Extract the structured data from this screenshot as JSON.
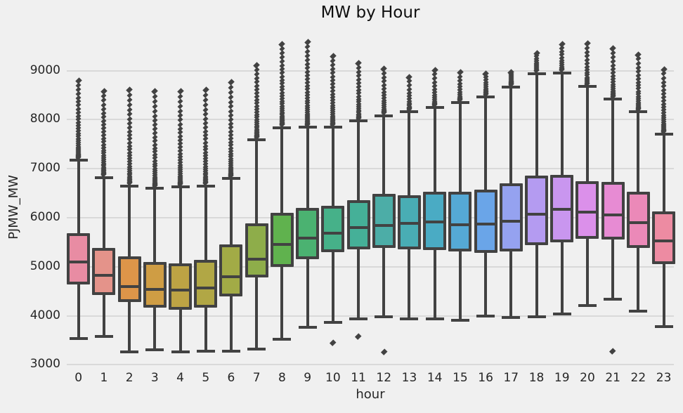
{
  "chart_data": {
    "type": "box",
    "title": "MW by Hour",
    "xlabel": "hour",
    "ylabel": "PJMW_MW",
    "x_categories": [
      "0",
      "1",
      "2",
      "3",
      "4",
      "5",
      "6",
      "7",
      "8",
      "9",
      "10",
      "11",
      "12",
      "13",
      "14",
      "15",
      "16",
      "17",
      "18",
      "19",
      "20",
      "21",
      "22",
      "23"
    ],
    "yticks": [
      3000,
      4000,
      5000,
      6000,
      7000,
      8000,
      9000
    ],
    "ylim": [
      2950,
      9700
    ],
    "grid": true,
    "legend": false,
    "style": {
      "background": "#f0f0f0",
      "gridline": "#d9d9d9",
      "box_line": "#424242",
      "tick_text": "#262626",
      "title_text": "#0e0e0e"
    },
    "series": [
      {
        "hour": "0",
        "fill": "#e88ca3",
        "whisker_low": 3530,
        "q1": 4640,
        "median": 5090,
        "q3": 5680,
        "whisker_high": 7175,
        "outlier_max": 8790,
        "outliers_low": []
      },
      {
        "hour": "1",
        "fill": "#e4938a",
        "whisker_low": 3580,
        "q1": 4420,
        "median": 4820,
        "q3": 5380,
        "whisker_high": 6820,
        "outlier_max": 8580,
        "outliers_low": []
      },
      {
        "hour": "2",
        "fill": "#dd9549",
        "whisker_low": 3265,
        "q1": 4280,
        "median": 4590,
        "q3": 5210,
        "whisker_high": 6650,
        "outlier_max": 8610,
        "outliers_low": []
      },
      {
        "hour": "3",
        "fill": "#cf9d44",
        "whisker_low": 3300,
        "q1": 4160,
        "median": 4540,
        "q3": 5090,
        "whisker_high": 6600,
        "outlier_max": 8580,
        "outliers_low": []
      },
      {
        "hour": "4",
        "fill": "#bda344",
        "whisker_low": 3260,
        "q1": 4120,
        "median": 4520,
        "q3": 5070,
        "whisker_high": 6630,
        "outlier_max": 8580,
        "outliers_low": []
      },
      {
        "hour": "5",
        "fill": "#b1a745",
        "whisker_low": 3270,
        "q1": 4160,
        "median": 4560,
        "q3": 5140,
        "whisker_high": 6650,
        "outlier_max": 8610,
        "outliers_low": []
      },
      {
        "hour": "6",
        "fill": "#a2ab46",
        "whisker_low": 3280,
        "q1": 4400,
        "median": 4800,
        "q3": 5450,
        "whisker_high": 6800,
        "outlier_max": 8770,
        "outliers_low": []
      },
      {
        "hour": "7",
        "fill": "#8ead4a",
        "whisker_low": 3315,
        "q1": 4780,
        "median": 5150,
        "q3": 5880,
        "whisker_high": 7590,
        "outlier_max": 9110,
        "outliers_low": []
      },
      {
        "hour": "8",
        "fill": "#60b24e",
        "whisker_low": 3520,
        "q1": 5000,
        "median": 5455,
        "q3": 6100,
        "whisker_high": 7840,
        "outlier_max": 9540,
        "outliers_low": []
      },
      {
        "hour": "9",
        "fill": "#4bb271",
        "whisker_low": 3760,
        "q1": 5160,
        "median": 5590,
        "q3": 6200,
        "whisker_high": 7845,
        "outlier_max": 9575,
        "outliers_low": []
      },
      {
        "hour": "10",
        "fill": "#46b189",
        "whisker_low": 3870,
        "q1": 5290,
        "median": 5690,
        "q3": 6250,
        "whisker_high": 7850,
        "outlier_max": 9300,
        "outliers_low": [
          3450
        ]
      },
      {
        "hour": "11",
        "fill": "#45b098",
        "whisker_low": 3930,
        "q1": 5355,
        "median": 5800,
        "q3": 6360,
        "whisker_high": 7970,
        "outlier_max": 9155,
        "outliers_low": [
          3580
        ]
      },
      {
        "hour": "12",
        "fill": "#4cada7",
        "whisker_low": 3985,
        "q1": 5385,
        "median": 5840,
        "q3": 6480,
        "whisker_high": 8080,
        "outlier_max": 9040,
        "outliers_low": [
          3260
        ]
      },
      {
        "hour": "13",
        "fill": "#49adb4",
        "whisker_low": 3935,
        "q1": 5360,
        "median": 5890,
        "q3": 6460,
        "whisker_high": 8165,
        "outlier_max": 8870,
        "outliers_low": []
      },
      {
        "hour": "14",
        "fill": "#4aabc4",
        "whisker_low": 3935,
        "q1": 5345,
        "median": 5920,
        "q3": 6530,
        "whisker_high": 8250,
        "outlier_max": 9015,
        "outliers_low": []
      },
      {
        "hour": "15",
        "fill": "#55a9d5",
        "whisker_low": 3910,
        "q1": 5310,
        "median": 5855,
        "q3": 6535,
        "whisker_high": 8350,
        "outlier_max": 8960,
        "outliers_low": []
      },
      {
        "hour": "16",
        "fill": "#6aa5e8",
        "whisker_low": 3995,
        "q1": 5280,
        "median": 5870,
        "q3": 6575,
        "whisker_high": 8465,
        "outlier_max": 8930,
        "outliers_low": []
      },
      {
        "hour": "17",
        "fill": "#95a2f0",
        "whisker_low": 3965,
        "q1": 5310,
        "median": 5930,
        "q3": 6695,
        "whisker_high": 8665,
        "outlier_max": 8970,
        "outliers_low": []
      },
      {
        "hour": "18",
        "fill": "#b49bf1",
        "whisker_low": 3980,
        "q1": 5440,
        "median": 6070,
        "q3": 6860,
        "whisker_high": 8940,
        "outlier_max": 9355,
        "outliers_low": []
      },
      {
        "hour": "19",
        "fill": "#c996ef",
        "whisker_low": 4035,
        "q1": 5500,
        "median": 6170,
        "q3": 6875,
        "whisker_high": 8955,
        "outlier_max": 9545,
        "outliers_low": []
      },
      {
        "hour": "20",
        "fill": "#db90ea",
        "whisker_low": 4210,
        "q1": 5570,
        "median": 6115,
        "q3": 6745,
        "whisker_high": 8675,
        "outlier_max": 9560,
        "outliers_low": []
      },
      {
        "hour": "21",
        "fill": "#e78bd3",
        "whisker_low": 4340,
        "q1": 5560,
        "median": 6060,
        "q3": 6730,
        "whisker_high": 8420,
        "outlier_max": 9455,
        "outliers_low": [
          3280
        ]
      },
      {
        "hour": "22",
        "fill": "#eb89b8",
        "whisker_low": 4095,
        "q1": 5385,
        "median": 5900,
        "q3": 6530,
        "whisker_high": 8160,
        "outlier_max": 9330,
        "outliers_low": []
      },
      {
        "hour": "23",
        "fill": "#ed8ba2",
        "whisker_low": 3780,
        "q1": 5060,
        "median": 5530,
        "q3": 6135,
        "whisker_high": 7705,
        "outlier_max": 9030,
        "outliers_low": []
      }
    ]
  }
}
